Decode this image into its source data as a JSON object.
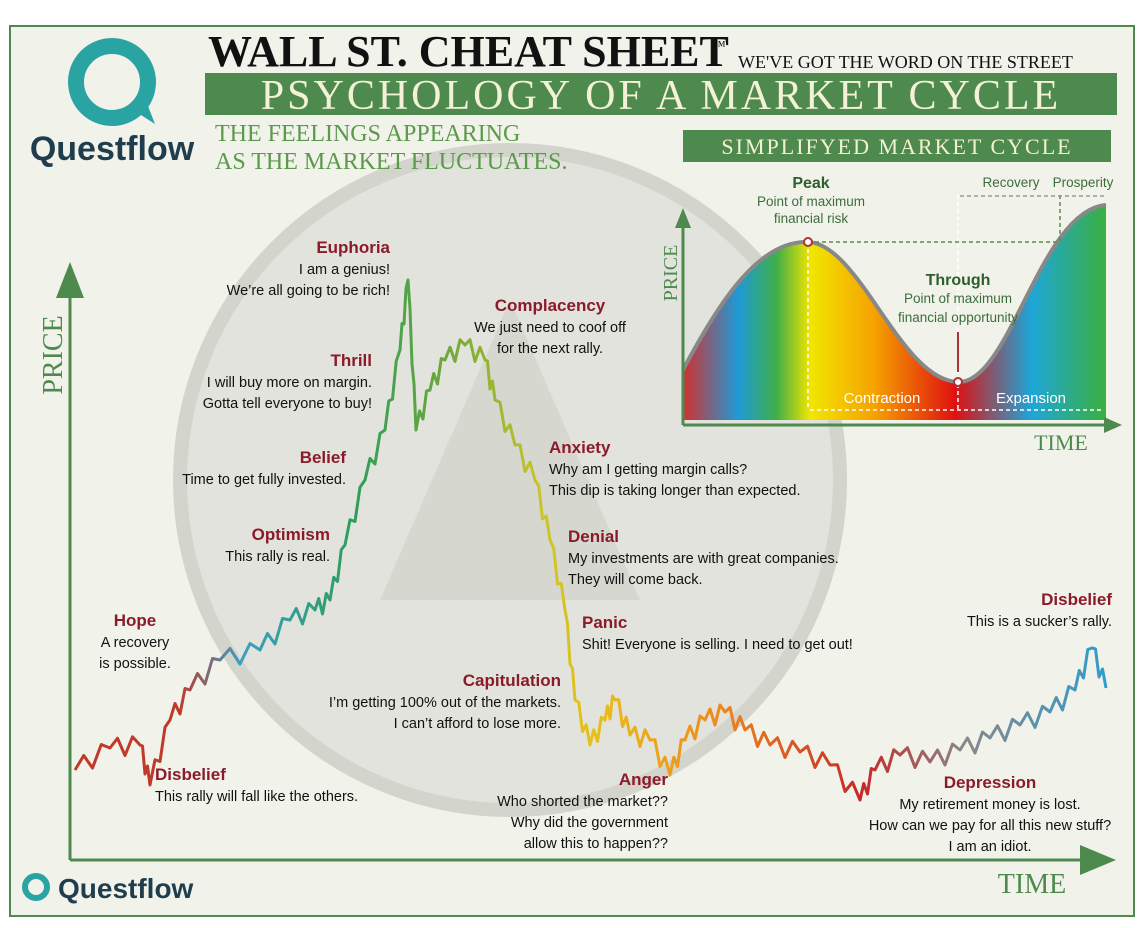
{
  "header": {
    "brand": "Questflow",
    "title": "WALL ST. CHEAT SHEET",
    "trademark": "™",
    "tagline": "WE'VE GOT THE WORD ON THE STREET",
    "banner": "PSYCHOLOGY OF A MARKET CYCLE",
    "subtitle": [
      "THE FEELINGS APPEARING",
      "AS THE MARKET FLUCTUATES."
    ]
  },
  "axes": {
    "y": "PRICE",
    "x": "TIME"
  },
  "stages": [
    {
      "title": "Euphoria",
      "lines": [
        "I am a genius!",
        "We’re all going to be rich!"
      ]
    },
    {
      "title": "Thrill",
      "lines": [
        "I will buy more on margin.",
        "Gotta tell everyone to buy!"
      ]
    },
    {
      "title": "Belief",
      "lines": [
        "Time to get fully invested."
      ]
    },
    {
      "title": "Optimism",
      "lines": [
        "This rally is real."
      ]
    },
    {
      "title": "Hope",
      "lines": [
        "A recovery",
        "is possible."
      ]
    },
    {
      "title": "Disbelief",
      "lines": [
        "This rally will fall like the others."
      ]
    },
    {
      "title": "Complacency",
      "lines": [
        "We just need to coof off",
        "for the next rally."
      ]
    },
    {
      "title": "Anxiety",
      "lines": [
        "Why am I getting margin calls?",
        "This dip is taking longer than expected."
      ]
    },
    {
      "title": "Denial",
      "lines": [
        "My investments are with great companies.",
        "They will come back."
      ]
    },
    {
      "title": "Panic",
      "lines": [
        "Shit! Everyone is selling. I need to get out!"
      ]
    },
    {
      "title": "Capitulation",
      "lines": [
        "I’m getting 100% out of the markets.",
        "I can’t afford to lose more."
      ]
    },
    {
      "title": "Anger",
      "lines": [
        "Who shorted the market??",
        "Why did the government",
        "allow this to happen??"
      ]
    },
    {
      "title": "Depression",
      "lines": [
        "My retirement money is lost.",
        "How can we pay for all this new stuff?",
        "I am an idiot."
      ]
    },
    {
      "title": "Disbelief",
      "lines": [
        "This is a sucker’s rally."
      ]
    }
  ],
  "inset": {
    "title": "SIMPLIFYED MARKET CYCLE",
    "peak": {
      "title": "Peak",
      "lines": [
        "Point of maximum",
        "financial risk"
      ]
    },
    "trough": {
      "title": "Through",
      "lines": [
        "Point of maximum",
        "financial opportunity"
      ]
    },
    "recovery": "Recovery",
    "prosperity": "Prosperity",
    "contraction": "Contraction",
    "expansion": "Expansion",
    "y": "PRICE",
    "x": "TIME"
  },
  "footer": {
    "brand": "Questflow"
  }
}
